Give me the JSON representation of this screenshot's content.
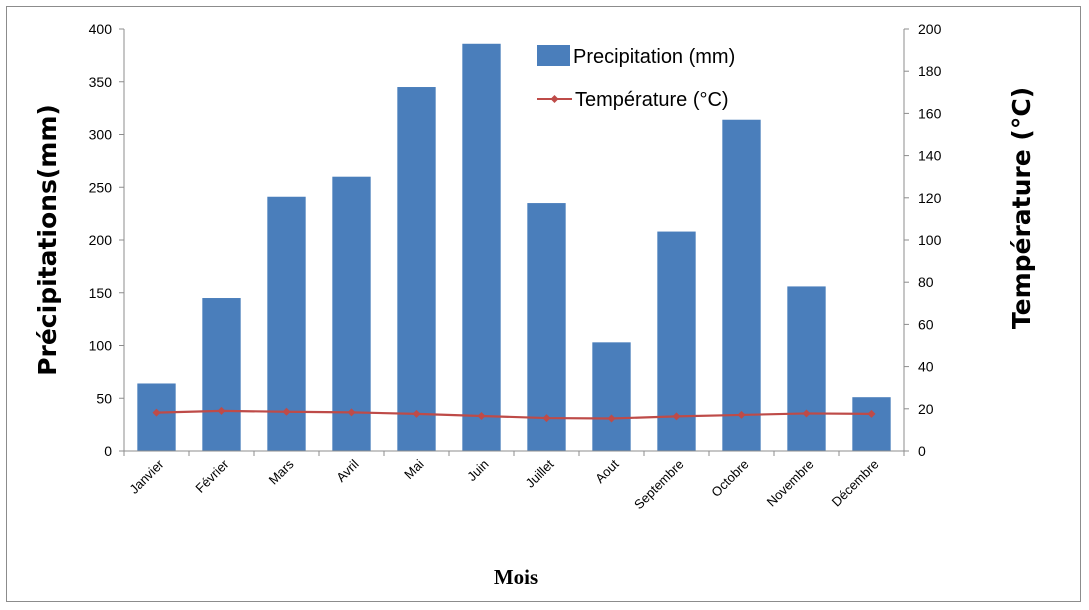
{
  "chart_data": {
    "type": "bar",
    "categories": [
      "Janvier",
      "Février",
      "Mars",
      "Avril",
      "Mai",
      "Juin",
      "Juillet",
      "Aout",
      "Septembre",
      "Octobre",
      "Novembre",
      "Décembre"
    ],
    "series": [
      {
        "name": "Precipitation (mm)",
        "type": "bar",
        "axis": "left",
        "color": "#4a7ebb",
        "values": [
          64,
          145,
          241,
          260,
          345,
          386,
          235,
          103,
          208,
          314,
          156,
          51
        ]
      },
      {
        "name": "Température (°C)",
        "type": "line",
        "axis": "right",
        "color": "#be4b48",
        "values": [
          18.2,
          19.0,
          18.6,
          18.3,
          17.6,
          16.6,
          15.6,
          15.4,
          16.4,
          17.1,
          17.8,
          17.6
        ]
      }
    ],
    "ylabel_left": "Précipitations(mm)",
    "ylabel_right": "Température (°C)",
    "xlabel": "Mois",
    "ylim_left": [
      0,
      400
    ],
    "yticks_left": [
      "0",
      "50",
      "100",
      "150",
      "200",
      "250",
      "300",
      "350",
      "400"
    ],
    "ylim_right": [
      0,
      200
    ],
    "yticks_right": [
      "0",
      "20",
      "40",
      "60",
      "80",
      "100",
      "120",
      "140",
      "160",
      "180",
      "200"
    ],
    "grid": false,
    "legend_position": "top-center"
  }
}
